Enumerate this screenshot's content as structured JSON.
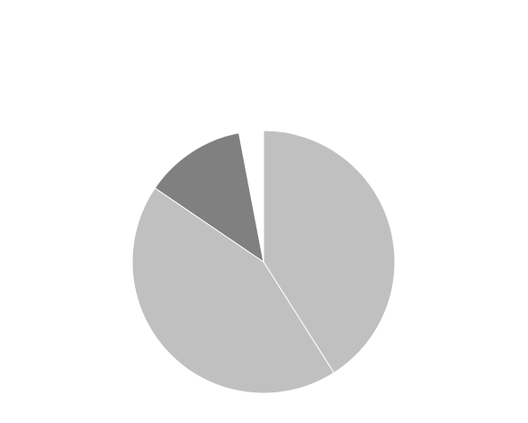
{
  "chart_data": {
    "type": "pie",
    "title": "",
    "legend": "none",
    "slices": [
      {
        "value": 41,
        "color": "#c0c0c0"
      },
      {
        "value": 43.5,
        "color": "#c0c0c0"
      },
      {
        "value": 12.5,
        "color": "#808080"
      },
      {
        "value": 3,
        "color": "#ffffff"
      }
    ]
  }
}
